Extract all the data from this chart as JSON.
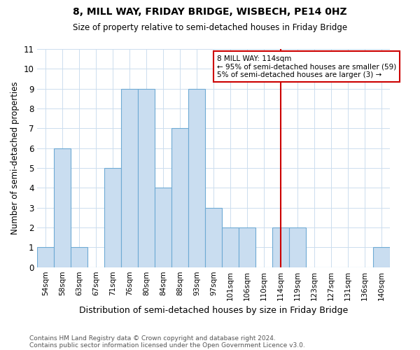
{
  "title": "8, MILL WAY, FRIDAY BRIDGE, WISBECH, PE14 0HZ",
  "subtitle": "Size of property relative to semi-detached houses in Friday Bridge",
  "xlabel": "Distribution of semi-detached houses by size in Friday Bridge",
  "ylabel": "Number of semi-detached properties",
  "categories": [
    "54sqm",
    "58sqm",
    "63sqm",
    "67sqm",
    "71sqm",
    "76sqm",
    "80sqm",
    "84sqm",
    "88sqm",
    "93sqm",
    "97sqm",
    "101sqm",
    "106sqm",
    "110sqm",
    "114sqm",
    "119sqm",
    "123sqm",
    "127sqm",
    "131sqm",
    "136sqm",
    "140sqm"
  ],
  "values": [
    1,
    6,
    1,
    0,
    5,
    9,
    9,
    4,
    7,
    9,
    3,
    2,
    2,
    0,
    2,
    2,
    0,
    0,
    0,
    0,
    1
  ],
  "bar_color": "#c9ddf0",
  "bar_edge_color": "#6eaad4",
  "vline_x": 14,
  "vline_color": "#cc0000",
  "annotation_line1": "8 MILL WAY: 114sqm",
  "annotation_line2": "← 95% of semi-detached houses are smaller (59)",
  "annotation_line3": "5% of semi-detached houses are larger (3) →",
  "annotation_box_color": "#cc0000",
  "ylim": [
    0,
    11
  ],
  "yticks": [
    0,
    1,
    2,
    3,
    4,
    5,
    6,
    7,
    8,
    9,
    10,
    11
  ],
  "footer1": "Contains HM Land Registry data © Crown copyright and database right 2024.",
  "footer2": "Contains public sector information licensed under the Open Government Licence v3.0.",
  "background_color": "#ffffff",
  "grid_color": "#ccddee"
}
